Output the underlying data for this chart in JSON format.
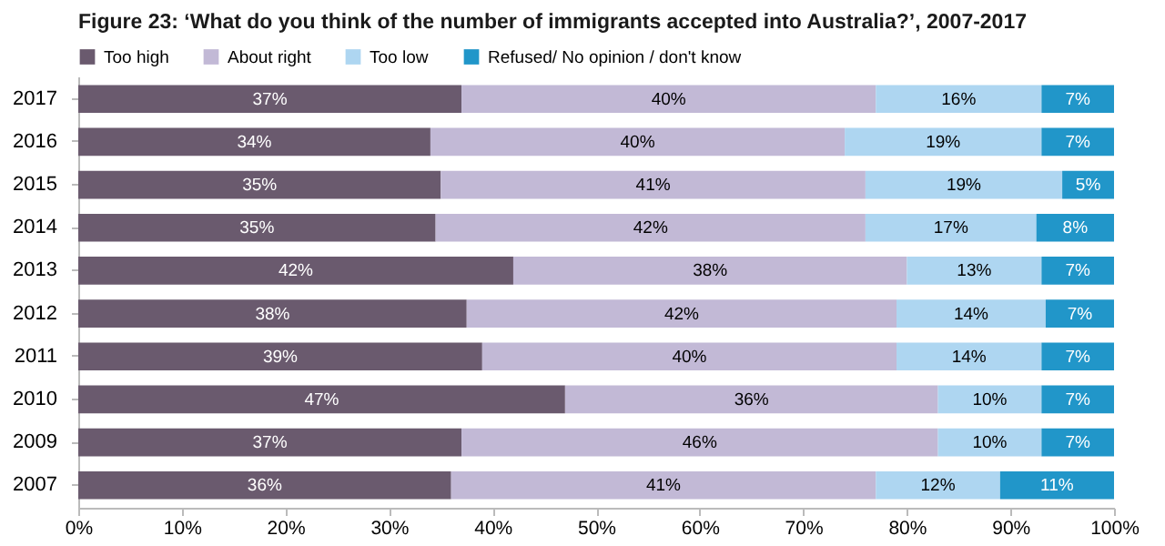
{
  "chart_data": {
    "type": "bar",
    "orientation": "horizontal",
    "stacked": true,
    "title": "Figure 23: ‘What do you think of the number of immigrants accepted into Australia?’, 2007-2017",
    "categories": [
      "2017",
      "2016",
      "2015",
      "2014",
      "2013",
      "2012",
      "2011",
      "2010",
      "2009",
      "2007"
    ],
    "series": [
      {
        "name": "Too high",
        "color": "#6a5a6e",
        "values": [
          37,
          34,
          35,
          34.5,
          42,
          37.5,
          39,
          47,
          37,
          36
        ],
        "value_labels": [
          "37%",
          "34%",
          "35%",
          "35%",
          "42%",
          "38%",
          "39%",
          "47%",
          "37%",
          "36%"
        ]
      },
      {
        "name": "About right",
        "color": "#c2b9d6",
        "values": [
          40,
          40,
          41,
          41.5,
          38,
          41.5,
          40,
          36,
          46,
          41
        ],
        "value_labels": [
          "40%",
          "40%",
          "41%",
          "42%",
          "38%",
          "42%",
          "40%",
          "36%",
          "46%",
          "41%"
        ]
      },
      {
        "name": "Too low",
        "color": "#aed6f1",
        "values": [
          16,
          19,
          19,
          16.5,
          13,
          14.4,
          14,
          10,
          10,
          12
        ],
        "value_labels": [
          "16%",
          "19%",
          "19%",
          "17%",
          "13%",
          "14%",
          "14%",
          "10%",
          "10%",
          "12%"
        ]
      },
      {
        "name": "Refused/ No opinion / don't know",
        "color": "#2196c9",
        "values": [
          7,
          7,
          5,
          7.5,
          7,
          6.6,
          7,
          7,
          7,
          11
        ],
        "value_labels": [
          "7%",
          "7%",
          "5%",
          "8%",
          "7%",
          "7%",
          "7%",
          "7%",
          "7%",
          "11%"
        ]
      }
    ],
    "xlim": [
      0,
      100
    ],
    "xticks": [
      {
        "value": 0,
        "label": "0%"
      },
      {
        "value": 10,
        "label": "10%"
      },
      {
        "value": 20,
        "label": "20%"
      },
      {
        "value": 30,
        "label": "30%"
      },
      {
        "value": 40,
        "label": "40%"
      },
      {
        "value": 50,
        "label": "50%"
      },
      {
        "value": 60,
        "label": "60%"
      },
      {
        "value": 70,
        "label": "70%"
      },
      {
        "value": 80,
        "label": "80%"
      },
      {
        "value": 90,
        "label": "90%"
      },
      {
        "value": 100,
        "label": "100%"
      }
    ],
    "legend": "top"
  }
}
